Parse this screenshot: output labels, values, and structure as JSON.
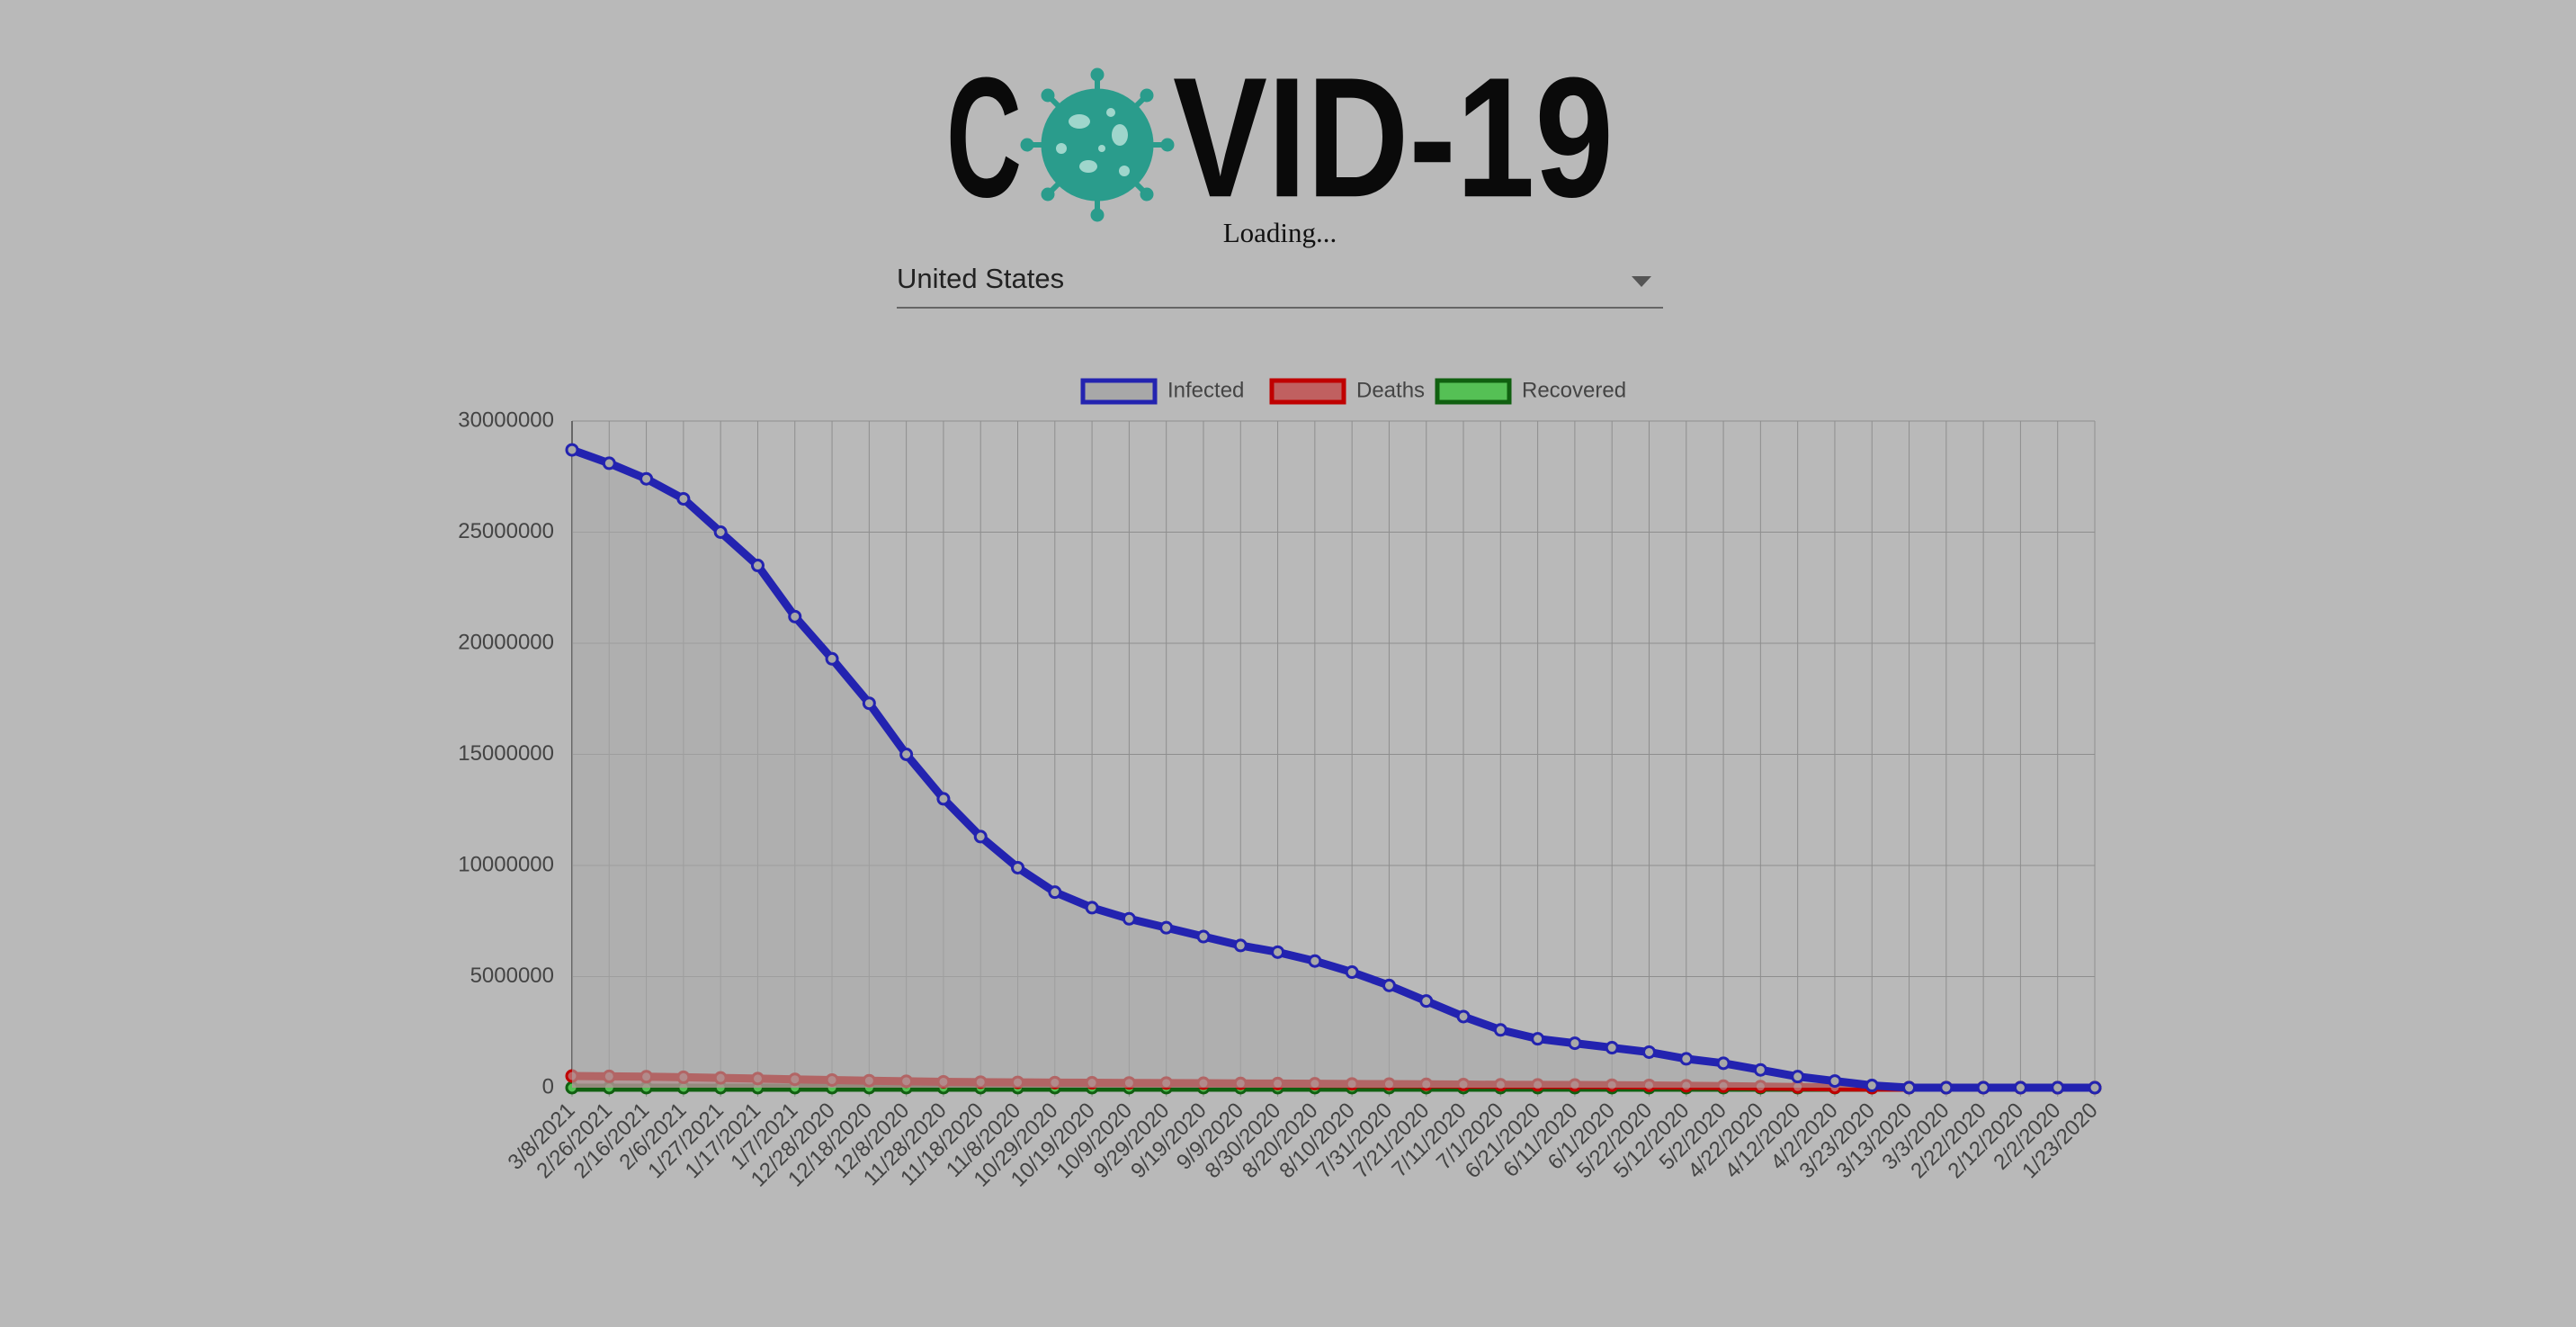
{
  "header": {
    "logo_start": "C",
    "logo_end": "VID-19",
    "status": "Loading..."
  },
  "select": {
    "value": "United States"
  },
  "chart_data": {
    "type": "line",
    "categories": [
      "3/8/2021",
      "2/26/2021",
      "2/16/2021",
      "2/6/2021",
      "1/27/2021",
      "1/17/2021",
      "1/7/2021",
      "12/28/2020",
      "12/18/2020",
      "12/8/2020",
      "11/28/2020",
      "11/18/2020",
      "11/8/2020",
      "10/29/2020",
      "10/19/2020",
      "10/9/2020",
      "9/29/2020",
      "9/19/2020",
      "9/9/2020",
      "8/30/2020",
      "8/20/2020",
      "8/10/2020",
      "7/31/2020",
      "7/21/2020",
      "7/11/2020",
      "7/1/2020",
      "6/21/2020",
      "6/11/2020",
      "6/1/2020",
      "5/22/2020",
      "5/12/2020",
      "5/2/2020",
      "4/22/2020",
      "4/12/2020",
      "4/2/2020",
      "3/23/2020",
      "3/13/2020",
      "3/3/2020",
      "2/22/2020",
      "2/12/2020",
      "2/2/2020",
      "1/23/2020"
    ],
    "series": [
      {
        "name": "Infected",
        "color": "#2323b0",
        "fill": "#a8a8a8",
        "values": [
          28700000,
          28100000,
          27400000,
          26500000,
          25000000,
          23500000,
          21200000,
          19300000,
          17300000,
          15000000,
          13000000,
          11300000,
          9900000,
          8800000,
          8100000,
          7600000,
          7200000,
          6800000,
          6400000,
          6100000,
          5700000,
          5200000,
          4600000,
          3900000,
          3200000,
          2600000,
          2200000,
          2000000,
          1800000,
          1600000,
          1300000,
          1100000,
          800000,
          500000,
          300000,
          100000,
          0,
          0,
          0,
          0,
          0,
          0
        ]
      },
      {
        "name": "Deaths",
        "color": "#c00000",
        "fill": "#c06060",
        "values": [
          525000,
          510000,
          495000,
          470000,
          440000,
          410000,
          375000,
          345000,
          315000,
          290000,
          265000,
          250000,
          240000,
          230000,
          222000,
          215000,
          208000,
          200000,
          192000,
          185000,
          177000,
          168000,
          160000,
          150000,
          140000,
          130000,
          125000,
          120000,
          112000,
          102000,
          85000,
          70000,
          50000,
          30000,
          10000,
          3000,
          0,
          0,
          0,
          0,
          0,
          0
        ]
      },
      {
        "name": "Recovered",
        "color": "#106010",
        "fill": "#55c055",
        "values": [
          0,
          0,
          0,
          0,
          0,
          0,
          0,
          0,
          0,
          0,
          0,
          0,
          0,
          0,
          0,
          0,
          0,
          0,
          0,
          0,
          0,
          0,
          0,
          0,
          0,
          0,
          0,
          0,
          0,
          0,
          0,
          0,
          0,
          0,
          0,
          0,
          0,
          0,
          0,
          0,
          0,
          0
        ]
      }
    ],
    "ylim": [
      0,
      30000000
    ],
    "yticks": [
      0,
      5000000,
      10000000,
      15000000,
      20000000,
      25000000,
      30000000
    ],
    "grid": true,
    "legend": "top"
  }
}
